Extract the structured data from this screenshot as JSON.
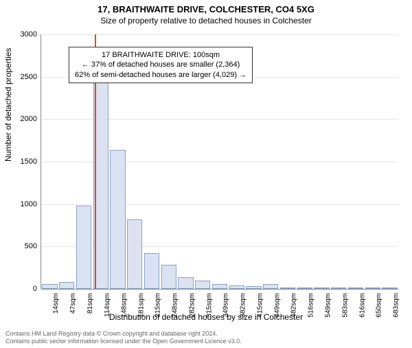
{
  "titles": {
    "main": "17, BRAITHWAITE DRIVE, COLCHESTER, CO4 5XG",
    "sub": "Size of property relative to detached houses in Colchester",
    "x_axis": "Distribution of detached houses by size in Colchester",
    "y_axis": "Number of detached properties"
  },
  "chart": {
    "type": "histogram",
    "background_color": "#ffffff",
    "grid_color": "#e5e5e5",
    "axis_color": "#888888",
    "bar_fill": "#dbe3f2",
    "bar_stroke": "#8aa0c8",
    "marker_color": "#d9463a",
    "y": {
      "min": 0,
      "max": 3000,
      "step": 500,
      "ticks": [
        0,
        500,
        1000,
        1500,
        2000,
        2500,
        3000
      ],
      "label_fontsize": 11
    },
    "x": {
      "labels": [
        "14sqm",
        "47sqm",
        "81sqm",
        "114sqm",
        "148sqm",
        "181sqm",
        "215sqm",
        "248sqm",
        "282sqm",
        "315sqm",
        "349sqm",
        "382sqm",
        "415sqm",
        "449sqm",
        "482sqm",
        "516sqm",
        "549sqm",
        "583sqm",
        "616sqm",
        "650sqm",
        "683sqm"
      ],
      "label_fontsize": 10
    },
    "values": [
      60,
      80,
      980,
      2460,
      1640,
      820,
      420,
      280,
      140,
      100,
      60,
      40,
      30,
      60,
      15,
      10,
      8,
      6,
      5,
      4,
      3
    ],
    "bar_width_ratio": 0.9,
    "marker_index_fractional": 2.7
  },
  "callout": {
    "line1": "17 BRAITHWAITE DRIVE: 100sqm",
    "line2": "← 37% of detached houses are smaller (2,364)",
    "line3": "62% of semi-detached houses are larger (4,029) →",
    "border_color": "#333333",
    "bg_color": "#ffffff",
    "fontsize": 11
  },
  "footer": {
    "line1": "Contains HM Land Registry data © Crown copyright and database right 2024.",
    "line2": "Contains public sector information licensed under the Open Government Licence v3.0.",
    "color": "#666666",
    "fontsize": 9
  }
}
